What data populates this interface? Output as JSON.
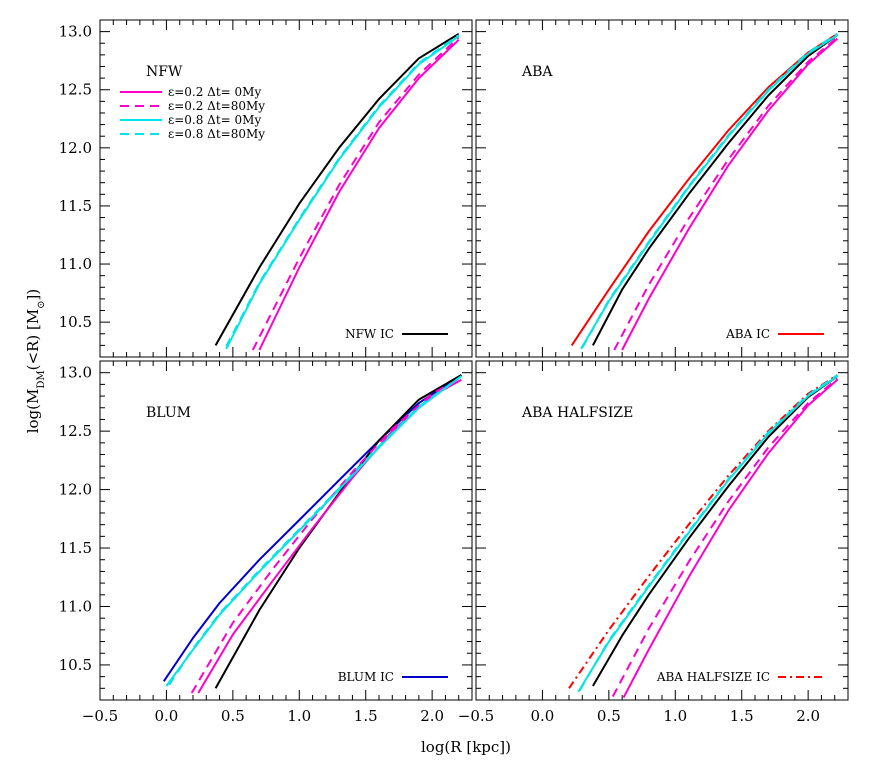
{
  "figure": {
    "xlabel": "log(R [kpc])",
    "ylabel_main": "log(M",
    "ylabel_sub": "DM",
    "ylabel_rest": "(<R) [M",
    "ylabel_sun": "⊙",
    "ylabel_end": "])"
  },
  "legend": [
    {
      "label": "ε=0.2  Δt=  0My",
      "color": "#ff00cc",
      "dash": "solid"
    },
    {
      "label": "ε=0.2  Δt=80My",
      "color": "#ff00cc",
      "dash": "dashed"
    },
    {
      "label": "ε=0.8  Δt=  0My",
      "color": "#00e5e5",
      "dash": "solid"
    },
    {
      "label": "ε=0.8  Δt=80My",
      "color": "#00e5e5",
      "dash": "dashed"
    }
  ],
  "chart_data": [
    {
      "type": "line",
      "title": "NFW",
      "xlim": [
        -0.5,
        2.3
      ],
      "ylim": [
        10.2,
        13.1
      ],
      "ic_label": "NFW IC",
      "ic_color": "#000000",
      "ic_dash": "solid",
      "series": [
        {
          "name": "NFW IC",
          "color": "#000000",
          "dash": "solid",
          "x": [
            0.37,
            0.7,
            1.0,
            1.3,
            1.6,
            1.9,
            2.2
          ],
          "y": [
            10.3,
            10.97,
            11.52,
            12.0,
            12.42,
            12.77,
            12.98
          ]
        },
        {
          "name": "ε=0.2  Δt=  0My",
          "color": "#ff00cc",
          "dash": "solid",
          "x": [
            0.7,
            1.0,
            1.3,
            1.6,
            1.9,
            2.2
          ],
          "y": [
            10.26,
            10.97,
            11.62,
            12.17,
            12.6,
            12.93
          ]
        },
        {
          "name": "ε=0.2  Δt=80My",
          "color": "#ff00cc",
          "dash": "dashed",
          "x": [
            0.65,
            1.0,
            1.3,
            1.6,
            1.9,
            2.2
          ],
          "y": [
            10.26,
            11.05,
            11.68,
            12.22,
            12.63,
            12.95
          ]
        },
        {
          "name": "ε=0.8  Δt=  0My",
          "color": "#00e5e5",
          "dash": "solid",
          "x": [
            0.45,
            0.7,
            1.0,
            1.3,
            1.6,
            1.9,
            2.2
          ],
          "y": [
            10.27,
            10.83,
            11.38,
            11.9,
            12.35,
            12.72,
            12.96
          ]
        },
        {
          "name": "ε=0.8  Δt=80My",
          "color": "#00e5e5",
          "dash": "dashed",
          "x": [
            0.45,
            0.7,
            1.0,
            1.3,
            1.6,
            1.9,
            2.2
          ],
          "y": [
            10.29,
            10.84,
            11.39,
            11.91,
            12.36,
            12.73,
            12.97
          ]
        }
      ]
    },
    {
      "type": "line",
      "title": "ABA",
      "xlim": [
        -0.5,
        2.3
      ],
      "ylim": [
        10.2,
        13.1
      ],
      "ic_label": "ABA IC",
      "ic_color": "#ff0000",
      "ic_dash": "solid",
      "series": [
        {
          "name": "ABA IC",
          "color": "#ff0000",
          "dash": "solid",
          "x": [
            0.22,
            0.5,
            0.8,
            1.1,
            1.4,
            1.7,
            2.0,
            2.22
          ],
          "y": [
            10.3,
            10.78,
            11.28,
            11.73,
            12.15,
            12.52,
            12.82,
            12.98
          ]
        },
        {
          "name": "black",
          "color": "#000000",
          "dash": "solid",
          "x": [
            0.38,
            0.6,
            0.8,
            1.1,
            1.4,
            1.7,
            2.0,
            2.22
          ],
          "y": [
            10.3,
            10.78,
            11.13,
            11.6,
            12.04,
            12.45,
            12.79,
            12.97
          ]
        },
        {
          "name": "ε=0.2  Δt=  0My",
          "color": "#ff00cc",
          "dash": "solid",
          "x": [
            0.6,
            0.8,
            1.1,
            1.4,
            1.7,
            2.0,
            2.22
          ],
          "y": [
            10.26,
            10.7,
            11.3,
            11.85,
            12.32,
            12.72,
            12.94
          ]
        },
        {
          "name": "ε=0.2  Δt=80My",
          "color": "#ff00cc",
          "dash": "dashed",
          "x": [
            0.54,
            0.8,
            1.1,
            1.4,
            1.7,
            2.0,
            2.22
          ],
          "y": [
            10.26,
            10.82,
            11.39,
            11.9,
            12.36,
            12.74,
            12.95
          ]
        },
        {
          "name": "ε=0.8  Δt=  0My",
          "color": "#00e5e5",
          "dash": "solid",
          "x": [
            0.29,
            0.5,
            0.8,
            1.1,
            1.4,
            1.7,
            2.0,
            2.22
          ],
          "y": [
            10.27,
            10.68,
            11.18,
            11.66,
            12.1,
            12.49,
            12.81,
            12.97
          ]
        },
        {
          "name": "ε=0.8  Δt=80My",
          "color": "#00e5e5",
          "dash": "dashed",
          "x": [
            0.3,
            0.5,
            0.8,
            1.1,
            1.4,
            1.7,
            2.0,
            2.22
          ],
          "y": [
            10.28,
            10.69,
            11.19,
            11.67,
            12.11,
            12.5,
            12.82,
            12.98
          ]
        }
      ]
    },
    {
      "type": "line",
      "title": "BLUM",
      "xlim": [
        -0.5,
        2.3
      ],
      "ylim": [
        10.2,
        13.1
      ],
      "ic_label": "BLUM IC",
      "ic_color": "#0000cc",
      "ic_dash": "solid",
      "series": [
        {
          "name": "BLUM IC",
          "color": "#0000cc",
          "dash": "solid",
          "x": [
            -0.02,
            0.2,
            0.4,
            0.7,
            1.0,
            1.3,
            1.6,
            1.9,
            2.22
          ],
          "y": [
            10.36,
            10.73,
            11.03,
            11.4,
            11.74,
            12.08,
            12.42,
            12.74,
            12.98
          ]
        },
        {
          "name": "NFW IC",
          "color": "#000000",
          "dash": "solid",
          "x": [
            0.37,
            0.7,
            1.0,
            1.3,
            1.6,
            1.9,
            2.22
          ],
          "y": [
            10.3,
            10.97,
            11.5,
            11.97,
            12.42,
            12.77,
            12.98
          ]
        },
        {
          "name": "ε=0.2  Δt=  0My",
          "color": "#ff00cc",
          "dash": "solid",
          "x": [
            0.24,
            0.5,
            0.8,
            1.1,
            1.4,
            1.7,
            2.0,
            2.22
          ],
          "y": [
            10.26,
            10.76,
            11.22,
            11.67,
            12.1,
            12.5,
            12.8,
            12.94
          ]
        },
        {
          "name": "ε=0.2  Δt=80My",
          "color": "#ff00cc",
          "dash": "dashed",
          "x": [
            0.19,
            0.5,
            0.8,
            1.1,
            1.4,
            1.7,
            2.0,
            2.22
          ],
          "y": [
            10.26,
            10.86,
            11.32,
            11.75,
            12.15,
            12.52,
            12.82,
            12.96
          ]
        },
        {
          "name": "ε=0.8  Δt=  0My",
          "color": "#00e5e5",
          "dash": "solid",
          "x": [
            0.0,
            0.2,
            0.4,
            0.7,
            1.0,
            1.3,
            1.6,
            1.9,
            2.22
          ],
          "y": [
            10.32,
            10.63,
            10.93,
            11.3,
            11.65,
            12.0,
            12.36,
            12.7,
            12.97
          ]
        },
        {
          "name": "ε=0.8  Δt=80My",
          "color": "#00e5e5",
          "dash": "dashed",
          "x": [
            0.02,
            0.2,
            0.4,
            0.7,
            1.0,
            1.3,
            1.6,
            1.9,
            2.22
          ],
          "y": [
            10.33,
            10.64,
            10.94,
            11.31,
            11.66,
            12.01,
            12.37,
            12.71,
            12.97
          ]
        }
      ]
    },
    {
      "type": "line",
      "title": "ABA HALFSIZE",
      "xlim": [
        -0.5,
        2.3
      ],
      "ylim": [
        10.2,
        13.1
      ],
      "ic_label": "ABA HALFSIZE IC",
      "ic_color": "#ff0000",
      "ic_dash": "dashdot",
      "series": [
        {
          "name": "ABA HALFSIZE IC",
          "color": "#ff0000",
          "dash": "dashdot",
          "x": [
            0.2,
            0.5,
            0.8,
            1.1,
            1.4,
            1.7,
            2.0,
            2.22
          ],
          "y": [
            10.3,
            10.8,
            11.26,
            11.7,
            12.12,
            12.5,
            12.82,
            12.98
          ]
        },
        {
          "name": "black",
          "color": "#000000",
          "dash": "solid",
          "x": [
            0.38,
            0.6,
            0.8,
            1.1,
            1.4,
            1.7,
            2.0,
            2.22
          ],
          "y": [
            10.32,
            10.75,
            11.1,
            11.58,
            12.03,
            12.45,
            12.79,
            12.97
          ]
        },
        {
          "name": "ε=0.2  Δt=  0My",
          "color": "#ff00cc",
          "dash": "solid",
          "x": [
            0.61,
            0.8,
            1.1,
            1.4,
            1.7,
            2.0,
            2.22
          ],
          "y": [
            10.22,
            10.63,
            11.25,
            11.82,
            12.31,
            12.72,
            12.94
          ]
        },
        {
          "name": "ε=0.2  Δt=80My",
          "color": "#ff00cc",
          "dash": "dashed",
          "x": [
            0.53,
            0.8,
            1.1,
            1.4,
            1.7,
            2.0,
            2.22
          ],
          "y": [
            10.23,
            10.81,
            11.38,
            11.9,
            12.36,
            12.74,
            12.95
          ]
        },
        {
          "name": "ε=0.8  Δt=  0My",
          "color": "#00e5e5",
          "dash": "solid",
          "x": [
            0.27,
            0.5,
            0.8,
            1.1,
            1.4,
            1.7,
            2.0,
            2.22
          ],
          "y": [
            10.27,
            10.7,
            11.17,
            11.63,
            12.08,
            12.48,
            12.8,
            12.97
          ]
        },
        {
          "name": "ε=0.8  Δt=80My",
          "color": "#00e5e5",
          "dash": "dashed",
          "x": [
            0.28,
            0.5,
            0.8,
            1.1,
            1.4,
            1.7,
            2.0,
            2.22
          ],
          "y": [
            10.28,
            10.71,
            11.18,
            11.64,
            12.09,
            12.49,
            12.81,
            12.98
          ]
        }
      ]
    }
  ],
  "axis_ticks": {
    "x_major": [
      -0.5,
      0.0,
      0.5,
      1.0,
      1.5,
      2.0
    ],
    "x_labels": [
      "−0.5",
      "0.0",
      "0.5",
      "1.0",
      "1.5",
      "2.0"
    ],
    "y_major": [
      10.5,
      11.0,
      11.5,
      12.0,
      12.5,
      13.0
    ],
    "y_labels": [
      "10.5",
      "11.0",
      "11.5",
      "12.0",
      "12.5",
      "13.0"
    ]
  }
}
